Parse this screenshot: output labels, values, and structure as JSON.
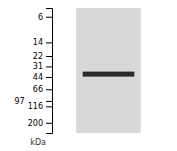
{
  "chart_data": {
    "type": "gel",
    "ylabel": "kDa",
    "categories": [
      null
    ],
    "values": [
      40
    ],
    "color": "#2a2a2a",
    "log": "y",
    "ylim": [
      280,
      4.5
    ],
    "yticks": [
      200,
      116,
      97,
      66,
      44,
      31,
      22,
      14,
      6
    ]
  }
}
